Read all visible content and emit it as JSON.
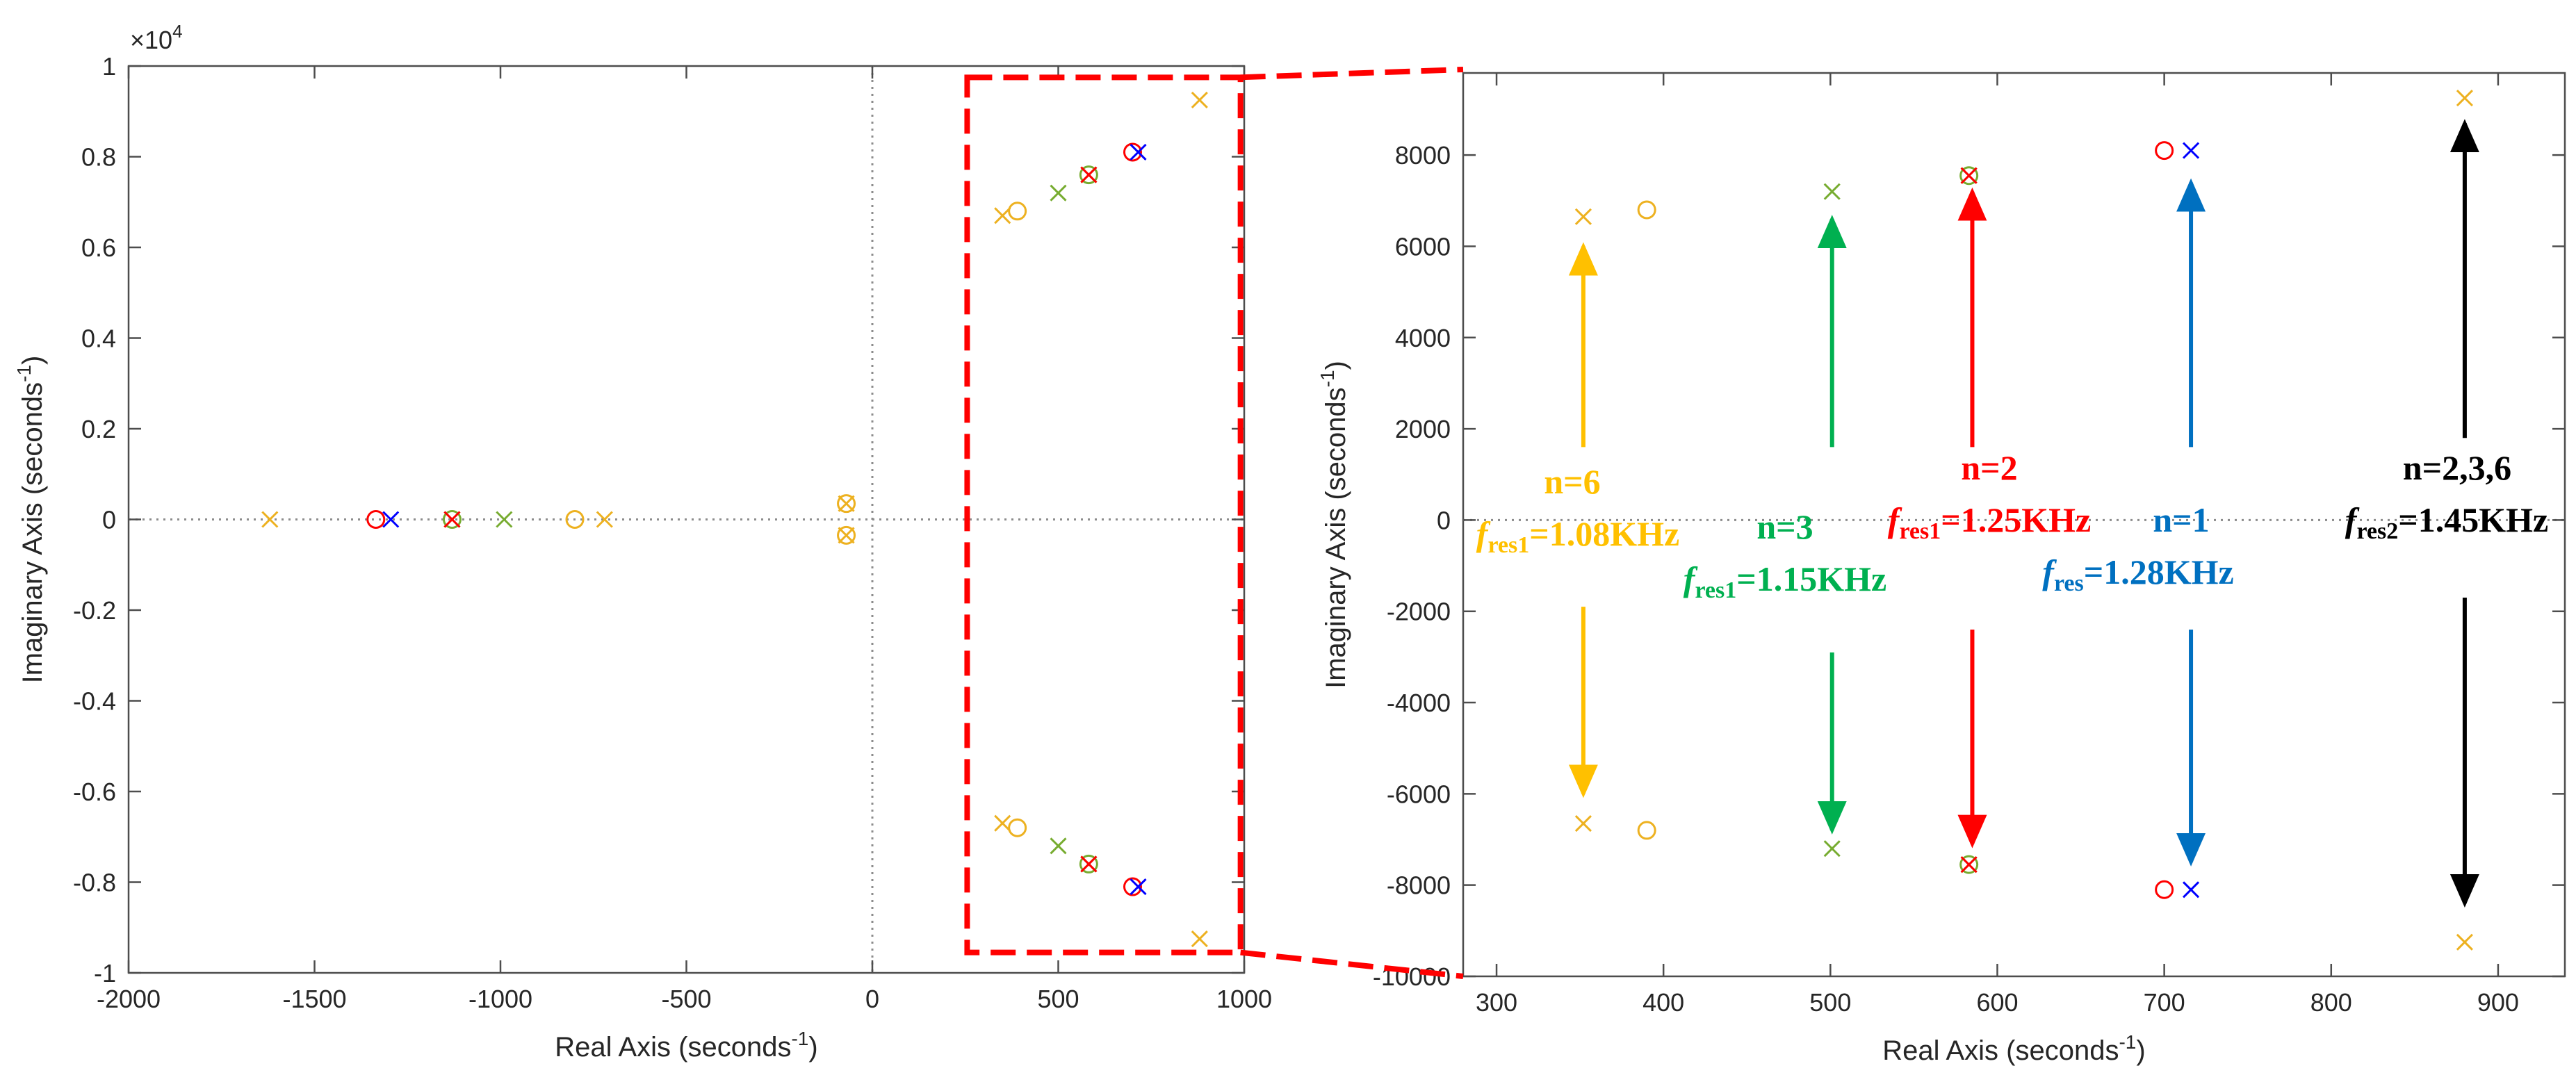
{
  "chart_data": [
    {
      "id": "left",
      "type": "scatter",
      "title": "",
      "xlabel": "Real Axis (seconds",
      "xlabel_sup": "-1",
      "xlabel_end": ")",
      "ylabel": "Imaginary Axis (seconds",
      "ylabel_sup": "-1",
      "ylabel_end": ")",
      "exponent_label": "×10",
      "exponent_sup": "4",
      "xlim": [
        -2000,
        1000
      ],
      "ylim": [
        -1,
        1
      ],
      "xticks": [
        -2000,
        -1500,
        -1000,
        -500,
        0,
        500,
        1000
      ],
      "xtick_labels": [
        "-2000",
        "-1500",
        "-1000",
        "-500",
        "0",
        "500",
        "1000"
      ],
      "yticks": [
        -1,
        -0.8,
        -0.6,
        -0.4,
        -0.2,
        0,
        0.2,
        0.4,
        0.6,
        0.8,
        1
      ],
      "ytick_labels": [
        "-1",
        "-0.8",
        "-0.6",
        "-0.4",
        "-0.2",
        "0",
        "0.2",
        "0.4",
        "0.6",
        "0.8",
        "1"
      ],
      "series": [
        {
          "name": "n=6",
          "color": "#EDB120",
          "poles": [
            [
              -1620,
              0
            ],
            [
              -720,
              0
            ],
            [
              -70,
              0.035
            ],
            [
              -70,
              -0.035
            ],
            [
              350,
              0.67
            ],
            [
              350,
              -0.67
            ],
            [
              880,
              0.925
            ],
            [
              880,
              -0.925
            ]
          ],
          "zeros": [
            [
              -800,
              0
            ],
            [
              -70,
              0.035
            ],
            [
              -70,
              -0.035
            ],
            [
              390,
              0.68
            ],
            [
              390,
              -0.68
            ]
          ]
        },
        {
          "name": "n=3",
          "color": "#77AC30",
          "poles": [
            [
              -990,
              0
            ],
            [
              -1130,
              0
            ],
            [
              500,
              0.72
            ],
            [
              500,
              -0.72
            ],
            [
              582,
              0.76
            ],
            [
              582,
              -0.76
            ]
          ],
          "zeros": [
            [
              -1130,
              0
            ],
            [
              582,
              0.76
            ],
            [
              582,
              -0.76
            ]
          ]
        },
        {
          "name": "n=2",
          "color": "#FF0000",
          "poles": [
            [
              -1130,
              0
            ],
            [
              582,
              0.76
            ],
            [
              582,
              -0.76
            ]
          ],
          "zeros": [
            [
              -1335,
              0
            ],
            [
              700,
              0.81
            ],
            [
              700,
              -0.81
            ]
          ]
        },
        {
          "name": "n=1",
          "color": "#0000FF",
          "poles": [
            [
              -1295,
              0
            ],
            [
              715,
              0.81
            ],
            [
              715,
              -0.81
            ]
          ],
          "zeros": []
        }
      ]
    },
    {
      "id": "right",
      "type": "scatter",
      "title": "",
      "xlabel": "Real Axis (seconds",
      "xlabel_sup": "-1",
      "xlabel_end": ")",
      "ylabel": "Imaginary Axis (seconds",
      "ylabel_sup": "-1",
      "ylabel_end": ")",
      "xlim": [
        280,
        940
      ],
      "ylim": [
        -10000,
        9800
      ],
      "xticks": [
        300,
        400,
        500,
        600,
        700,
        800,
        900
      ],
      "xtick_labels": [
        "300",
        "400",
        "500",
        "600",
        "700",
        "800",
        "900"
      ],
      "yticks": [
        -10000,
        -8000,
        -6000,
        -4000,
        -2000,
        0,
        2000,
        4000,
        6000,
        8000
      ],
      "ytick_labels": [
        "-10000",
        "-8000",
        "-6000",
        "-4000",
        "-2000",
        "0",
        "2000",
        "4000",
        "6000",
        "8000"
      ],
      "series": [
        {
          "name": "n=6",
          "color": "#EDB120",
          "poles": [
            [
              352,
              6650
            ],
            [
              352,
              -6650
            ],
            [
              880,
              9250
            ],
            [
              880,
              -9250
            ]
          ],
          "zeros": [
            [
              390,
              6800
            ],
            [
              390,
              -6800
            ]
          ]
        },
        {
          "name": "n=3",
          "color": "#77AC30",
          "poles": [
            [
              501,
              7200
            ],
            [
              501,
              -7200
            ],
            [
              583,
              7550
            ],
            [
              583,
              -7550
            ]
          ],
          "zeros": [
            [
              583,
              7550
            ],
            [
              583,
              -7550
            ]
          ]
        },
        {
          "name": "n=2",
          "color": "#FF0000",
          "poles": [
            [
              583,
              7550
            ],
            [
              583,
              -7550
            ]
          ],
          "zeros": [
            [
              700,
              8100
            ],
            [
              700,
              -8100
            ]
          ]
        },
        {
          "name": "n=1",
          "color": "#0000FF",
          "poles": [
            [
              716,
              8100
            ],
            [
              716,
              -8100
            ]
          ],
          "zeros": []
        }
      ],
      "arrows": [
        {
          "name": "n6-arrow",
          "x": 352,
          "color": "#FFC000",
          "up_from": 1600,
          "up_to": 6000,
          "down_from": -1900,
          "down_to": -6000
        },
        {
          "name": "n3-arrow",
          "x": 501,
          "color": "#00B050",
          "up_from": 1600,
          "up_to": 6600,
          "down_from": -2900,
          "down_to": -6800
        },
        {
          "name": "n2-arrow",
          "x": 585,
          "color": "#FF0000",
          "up_from": 1600,
          "up_to": 7200,
          "down_from": -2400,
          "down_to": -7100
        },
        {
          "name": "n1-arrow",
          "x": 716,
          "color": "#0070C0",
          "up_from": 1600,
          "up_to": 7400,
          "down_from": -2400,
          "down_to": -7500
        },
        {
          "name": "n236-arrow",
          "x": 880,
          "color": "#000000",
          "up_from": 1800,
          "up_to": 8700,
          "down_from": -1700,
          "down_to": -8400
        }
      ],
      "annotations": [
        {
          "name": "n6",
          "color": "#FFC000",
          "label": "n=6",
          "f": "f",
          "sub": "res1",
          "value": "=1.08KHz"
        },
        {
          "name": "n3",
          "color": "#00B050",
          "label": "n=3",
          "f": "f",
          "sub": "res1",
          "value": "=1.15KHz"
        },
        {
          "name": "n2",
          "color": "#FF0000",
          "label": "n=2",
          "f": "f",
          "sub": "res1",
          "value": "=1.25KHz"
        },
        {
          "name": "n1",
          "color": "#0070C0",
          "label": "n=1",
          "f": "f",
          "sub": "res",
          "value": "=1.28KHz"
        },
        {
          "name": "n236",
          "color": "#000000",
          "label": "n=2,3,6",
          "f": "f",
          "sub": "res2",
          "value": "=1.45KHz"
        }
      ]
    }
  ],
  "zoom_box": {
    "color": "#FF0000",
    "x_range": [
      255,
      990
    ],
    "y_range": [
      -0.955,
      0.975
    ]
  }
}
